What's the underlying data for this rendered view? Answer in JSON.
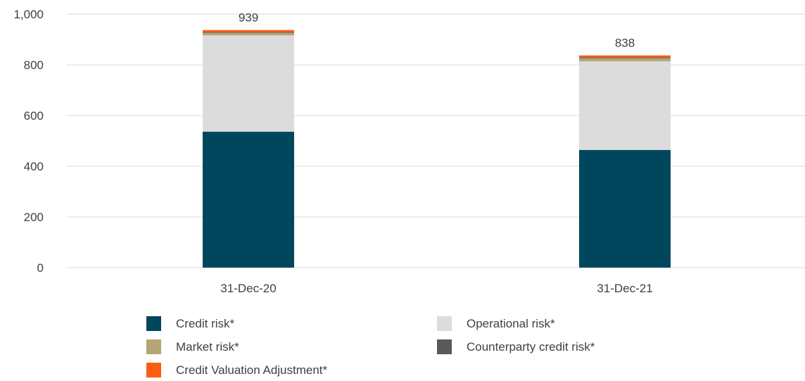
{
  "chart_data": {
    "type": "bar",
    "stacked": true,
    "categories": [
      "31-Dec-20",
      "31-Dec-21"
    ],
    "series": [
      {
        "name": "Credit risk*",
        "values": [
          536,
          464
        ],
        "color": "#00475e"
      },
      {
        "name": "Operational risk*",
        "values": [
          380,
          350
        ],
        "color": "#dcdcdc"
      },
      {
        "name": "Market risk*",
        "values": [
          10,
          12
        ],
        "color": "#b5a574"
      },
      {
        "name": "Counterparty credit risk*",
        "values": [
          3,
          3
        ],
        "color": "#595959"
      },
      {
        "name": "Credit Valuation Adjustment*",
        "values": [
          8,
          8
        ],
        "color": "#fc5c12"
      }
    ],
    "totals": [
      "939",
      "838"
    ],
    "ylim": [
      0,
      1000
    ],
    "yticks": [
      0,
      200,
      400,
      600,
      800,
      1000
    ],
    "ytick_labels": [
      "0",
      "200",
      "400",
      "600",
      "800",
      "1,000"
    ],
    "grid": true,
    "legend_position": "bottom",
    "title": "",
    "xlabel": "",
    "ylabel": ""
  }
}
